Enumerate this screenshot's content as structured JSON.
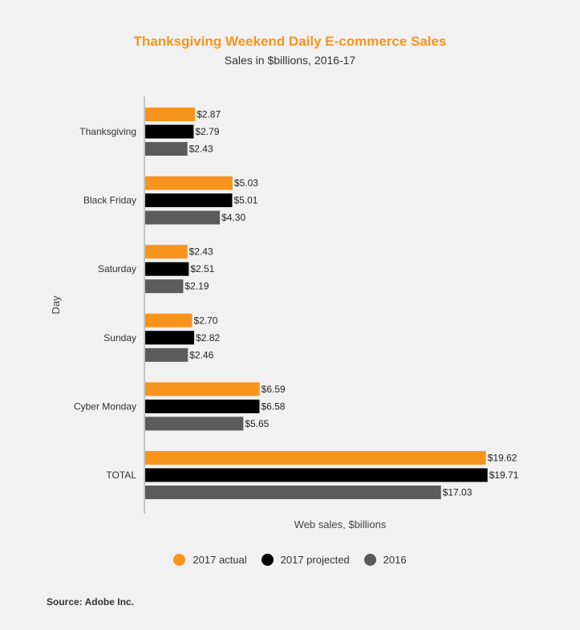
{
  "chart_data": {
    "type": "bar",
    "orientation": "horizontal",
    "title": "Thanksgiving Weekend Daily E-commerce Sales",
    "subtitle": "Sales in $billions, 2016-17",
    "xlabel": "Web sales, $billions",
    "ylabel": "Day",
    "categories": [
      "Thanksgiving",
      "Black Friday",
      "Saturday",
      "Sunday",
      "Cyber Monday",
      "TOTAL"
    ],
    "series": [
      {
        "name": "2017 actual",
        "color": "#f7941d",
        "values": [
          2.87,
          5.03,
          2.43,
          2.7,
          6.59,
          19.62
        ],
        "labels": [
          "$2.87",
          "$5.03",
          "$2.43",
          "$2.70",
          "$6.59",
          "$19.62"
        ]
      },
      {
        "name": "2017 projected",
        "color": "#000000",
        "values": [
          2.79,
          5.01,
          2.51,
          2.82,
          6.58,
          19.71
        ],
        "labels": [
          "$2.79",
          "$5.01",
          "$2.51",
          "$2.82",
          "$6.58",
          "$19.71"
        ]
      },
      {
        "name": "2016",
        "color": "#5b5b5b",
        "values": [
          2.43,
          4.3,
          2.19,
          2.46,
          5.65,
          17.03
        ],
        "labels": [
          "$2.43",
          "$4.30",
          "$2.19",
          "$2.46",
          "$5.65",
          "$17.03"
        ]
      }
    ],
    "xlim": [
      0,
      20
    ],
    "grid": false,
    "legend_position": "bottom"
  },
  "footer": {
    "source": "Source: Adobe Inc."
  }
}
